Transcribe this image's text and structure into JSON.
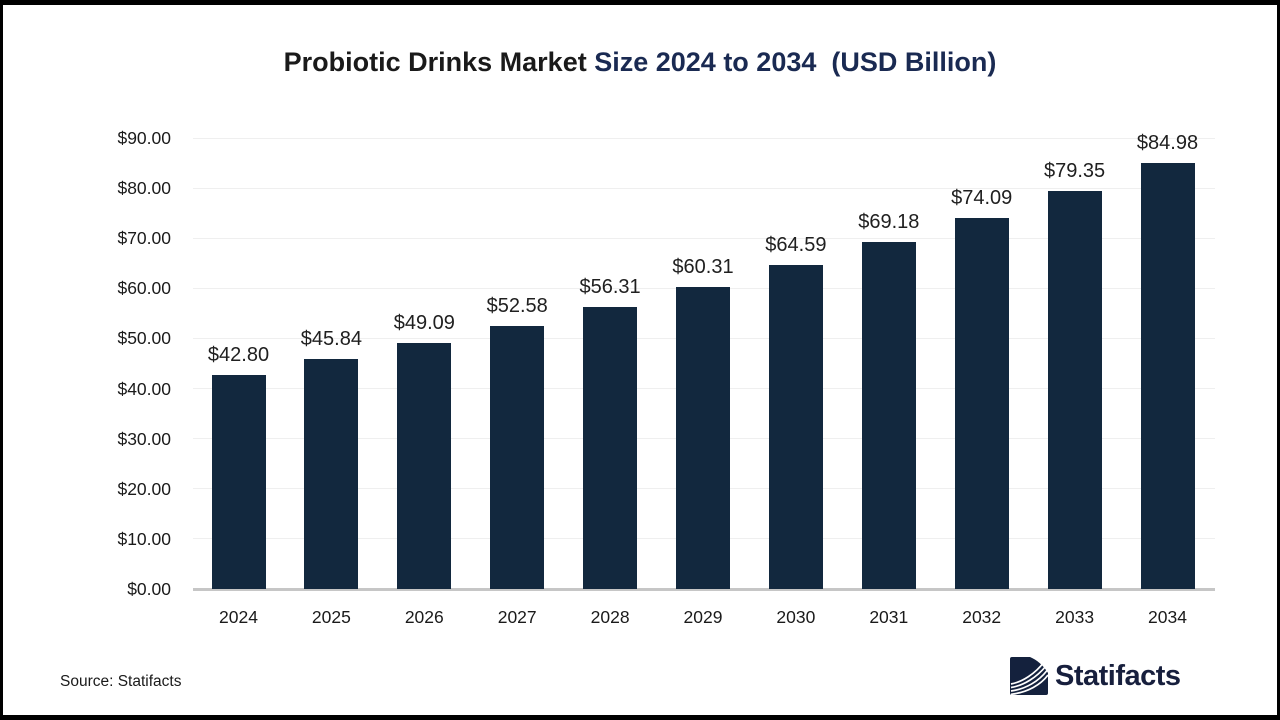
{
  "title": {
    "part1": "Probiotic Drinks Market ",
    "part2": "Size 2024 to 2034  (USD Billion)"
  },
  "chart_data": {
    "type": "bar",
    "title": "Probiotic Drinks Market Size 2024 to 2034  (USD Billion)",
    "unit": "USD Billion",
    "categories": [
      "2024",
      "2025",
      "2026",
      "2027",
      "2028",
      "2029",
      "2030",
      "2031",
      "2032",
      "2033",
      "2034"
    ],
    "values": [
      42.8,
      45.84,
      49.09,
      52.58,
      56.31,
      60.31,
      64.59,
      69.18,
      74.09,
      79.35,
      84.98
    ],
    "value_labels": [
      "$42.80",
      "$45.84",
      "$49.09",
      "$52.58",
      "$56.31",
      "$60.31",
      "$64.59",
      "$69.18",
      "$74.09",
      "$79.35",
      "$84.98"
    ],
    "xlabel": "",
    "ylabel": "",
    "ylim": [
      0,
      90
    ],
    "ytick_interval": 10,
    "ytick_labels": [
      "$0.00",
      "$10.00",
      "$20.00",
      "$30.00",
      "$40.00",
      "$50.00",
      "$60.00",
      "$70.00",
      "$80.00",
      "$90.00"
    ],
    "grid": true,
    "legend": false,
    "bar_color": "#12283E"
  },
  "footer": {
    "source": "Source: Statifacts",
    "logo_text": "Statifacts"
  },
  "colors": {
    "title_primary": "#1A1A1A",
    "title_accent": "#1A2A52",
    "bar": "#12283E",
    "gridline": "#EFEFEF",
    "baseline": "#C6C6C6",
    "logo_navy": "#14213D"
  }
}
